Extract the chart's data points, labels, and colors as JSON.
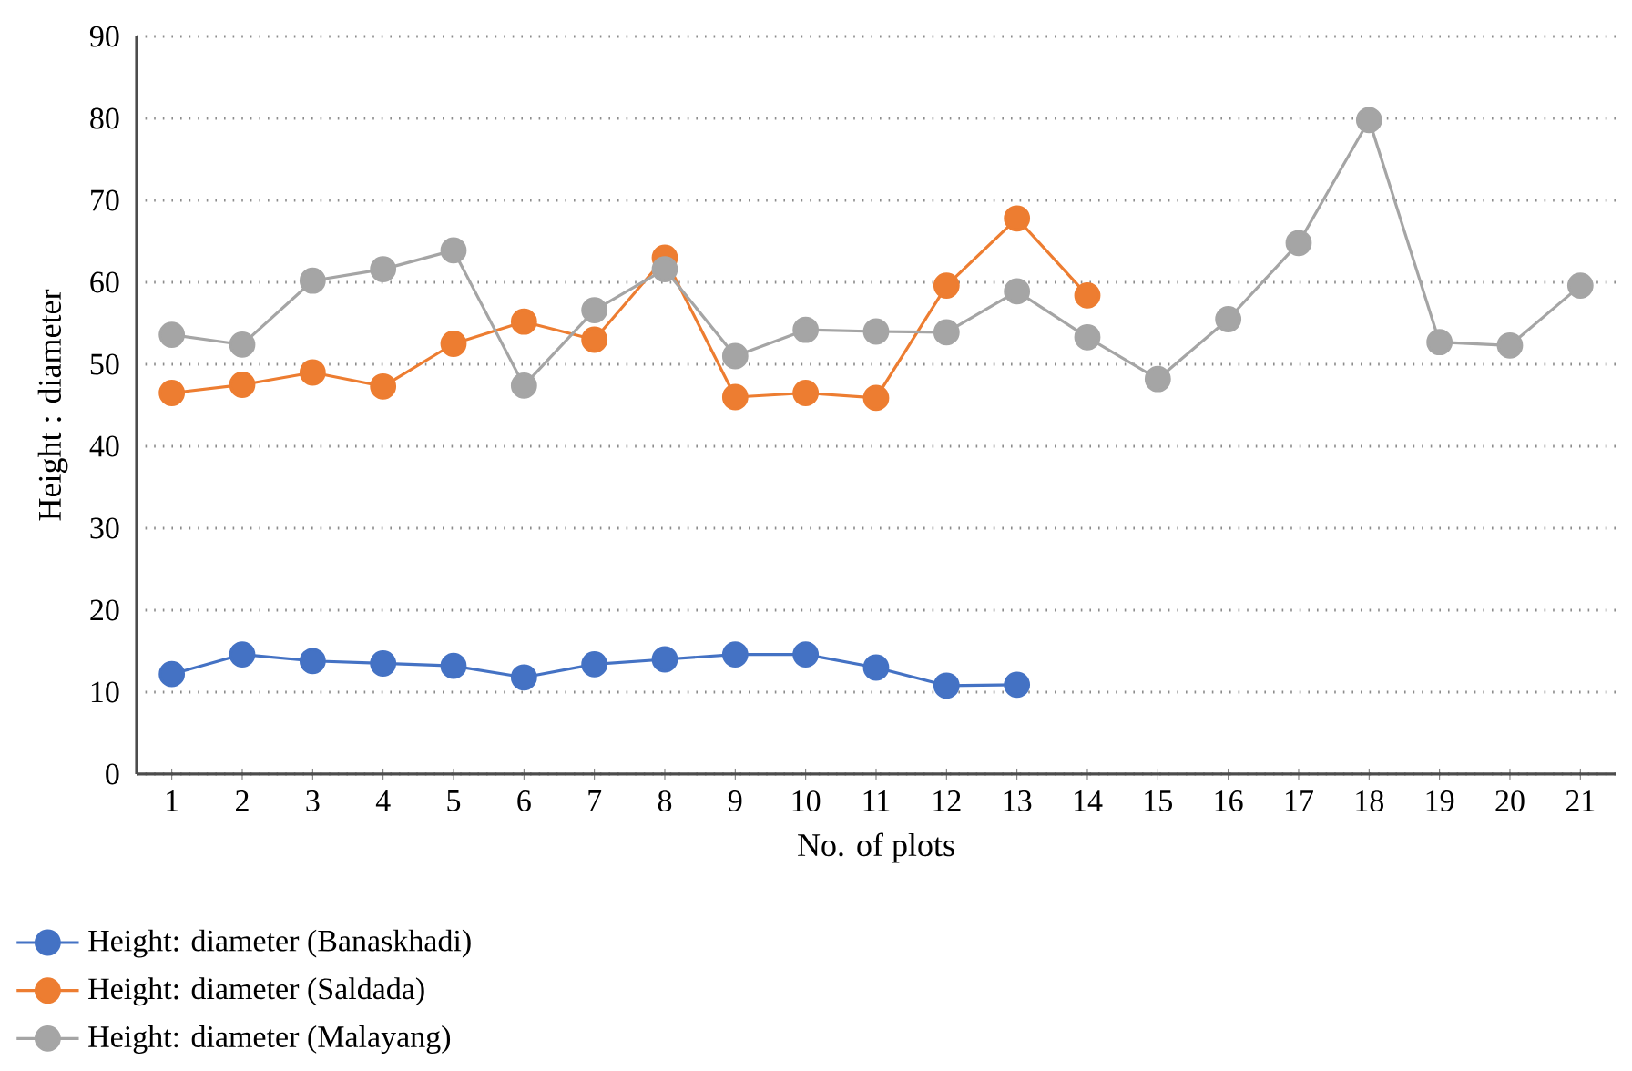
{
  "chart_data": {
    "type": "line",
    "xlabel": "No. of plots",
    "ylabel": "Height : diameter",
    "categories": [
      "1",
      "2",
      "3",
      "4",
      "5",
      "6",
      "7",
      "8",
      "9",
      "10",
      "11",
      "12",
      "13",
      "14",
      "15",
      "16",
      "17",
      "18",
      "19",
      "20",
      "21"
    ],
    "series": [
      {
        "name": "Height: diameter (Banaskhadi)",
        "color": "#4472c4",
        "values": [
          12.2,
          14.6,
          13.8,
          13.5,
          13.2,
          11.8,
          13.4,
          14.0,
          14.6,
          14.6,
          13.0,
          10.8,
          10.9,
          null,
          null,
          null,
          null,
          null,
          null,
          null,
          null
        ]
      },
      {
        "name": "Height: diameter (Saldada)",
        "color": "#ed7d31",
        "values": [
          46.5,
          47.5,
          49.0,
          47.3,
          52.5,
          55.2,
          53.0,
          63.0,
          46.0,
          46.5,
          45.9,
          59.6,
          67.8,
          58.4,
          null,
          null,
          null,
          null,
          null,
          null,
          null
        ]
      },
      {
        "name": "Height: diameter (Malayang)",
        "color": "#a5a5a5",
        "values": [
          53.6,
          52.4,
          60.2,
          61.6,
          63.9,
          47.4,
          56.6,
          61.6,
          51.0,
          54.2,
          54.0,
          53.9,
          58.9,
          53.3,
          48.2,
          55.5,
          64.8,
          79.8,
          52.7,
          52.3,
          59.6
        ]
      }
    ],
    "ylim": [
      0,
      90
    ],
    "yticks": [
      0,
      10,
      20,
      30,
      40,
      50,
      60,
      70,
      80,
      90
    ],
    "grid": "y",
    "legend": "bottom",
    "marker": "circle",
    "line_style": "solid"
  }
}
